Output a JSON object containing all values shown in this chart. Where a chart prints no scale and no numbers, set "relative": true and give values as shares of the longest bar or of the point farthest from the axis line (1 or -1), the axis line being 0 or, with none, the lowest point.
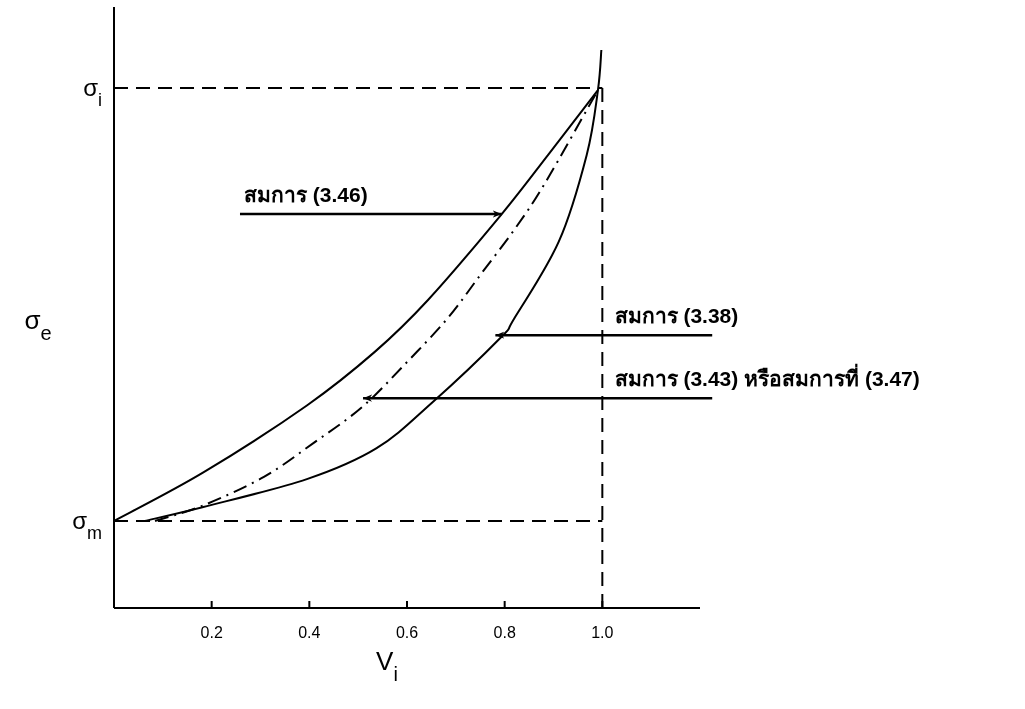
{
  "chart_data": {
    "type": "line",
    "relative": true,
    "xlabel": "V$_{i}$",
    "ylabel": "σ$_{e}$",
    "xlim": [
      0,
      1.2
    ],
    "xticks": [
      0.2,
      0.4,
      0.6,
      0.8,
      {
        "value": 1,
        "label": "1.0"
      }
    ],
    "series": [
      {
        "color": "#000000",
        "line_style": "solid",
        "x": [
          0,
          0.183,
          0.395,
          0.534,
          0.643,
          0.794,
          0.889,
          0.991
        ],
        "values": [
          0.156,
          0.243,
          0.363,
          0.459,
          0.552,
          0.706,
          0.812,
          0.928
        ]
      },
      {
        "color": "#000000",
        "line_style": "solid",
        "x": [
          0.063,
          0.183,
          0.395,
          0.537,
          0.65,
          0.791,
          0.819,
          0.911,
          0.968,
          0.991,
          0.998
        ],
        "values": [
          0.156,
          0.181,
          0.231,
          0.286,
          0.367,
          0.484,
          0.518,
          0.657,
          0.812,
          0.928,
          1
        ]
      },
      {
        "color": "#000000",
        "line_style": "dashdot",
        "x": [
          0.084,
          0.183,
          0.307,
          0.409,
          0.508,
          0.597,
          0.682,
          0.752,
          0.823,
          0.883,
          0.991
        ],
        "values": [
          0.156,
          0.184,
          0.235,
          0.296,
          0.36,
          0.438,
          0.518,
          0.599,
          0.682,
          0.762,
          0.928
        ]
      }
    ],
    "ref_lines": [
      {
        "axis": "y",
        "value": 0.932,
        "label": "σ$_{i}$",
        "line_style": "dashed"
      },
      {
        "axis": "y",
        "value": 0.156,
        "label": "σ$_{m}$",
        "line_style": "dashed"
      },
      {
        "axis": "x",
        "value": 1,
        "label": null,
        "line_style": "dashed"
      }
    ],
    "annotations": [
      {
        "text": "สมการ (3.46)",
        "x": 0.794,
        "y": 0.706
      },
      {
        "text": "สมการ (3.38)",
        "x": 0.781,
        "y": 0.489
      },
      {
        "text": "สมการ (3.43) หรือสมการที่ (3.47)",
        "x": 0.51,
        "y": 0.376
      }
    ]
  }
}
